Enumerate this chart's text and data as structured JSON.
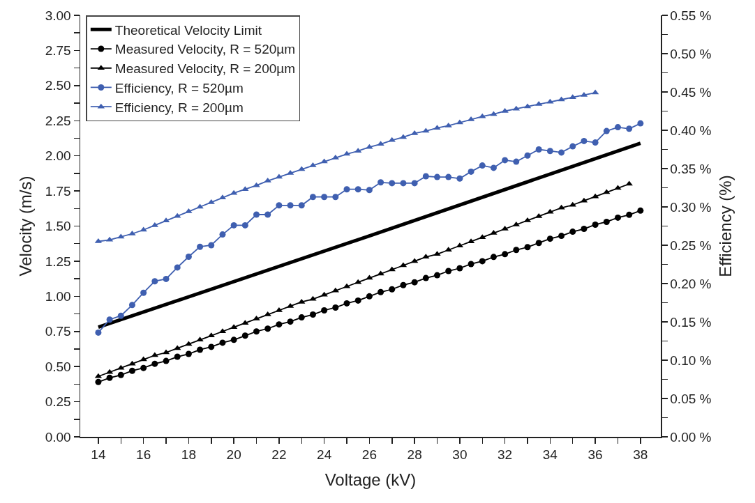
{
  "chart_data": {
    "type": "line",
    "xlabel": "Voltage (kV)",
    "ylabel": "Velocity (m/s)",
    "y2label": "Efficiency (%)",
    "xlim": [
      13.2,
      38.9
    ],
    "ylim": [
      0,
      3
    ],
    "y2lim": [
      0,
      0.55
    ],
    "xticks": [
      14,
      {
        "value": 15,
        "label": null
      },
      16,
      {
        "value": 17,
        "label": null
      },
      18,
      {
        "value": 19,
        "label": null
      },
      20,
      {
        "value": 21,
        "label": null
      },
      22,
      {
        "value": 23,
        "label": null
      },
      24,
      {
        "value": 25,
        "label": null
      },
      26,
      {
        "value": 27,
        "label": null
      },
      28,
      {
        "value": 29,
        "label": null
      },
      30,
      {
        "value": 31,
        "label": null
      },
      32,
      {
        "value": 33,
        "label": null
      },
      34,
      {
        "value": 35,
        "label": null
      },
      36,
      {
        "value": 37,
        "label": null
      },
      38
    ],
    "yticks": [
      {
        "value": 0,
        "label": "0.00"
      },
      {
        "value": 0.125,
        "label": null
      },
      {
        "value": 0.25,
        "label": "0.25"
      },
      {
        "value": 0.375,
        "label": null
      },
      {
        "value": 0.5,
        "label": "0.50"
      },
      {
        "value": 0.625,
        "label": null
      },
      {
        "value": 0.75,
        "label": "0.75"
      },
      {
        "value": 0.875,
        "label": null
      },
      {
        "value": 1,
        "label": "1.00"
      },
      {
        "value": 1.125,
        "label": null
      },
      {
        "value": 1.25,
        "label": "1.25"
      },
      {
        "value": 1.375,
        "label": null
      },
      {
        "value": 1.5,
        "label": "1.50"
      },
      {
        "value": 1.625,
        "label": null
      },
      {
        "value": 1.75,
        "label": "1.75"
      },
      {
        "value": 1.875,
        "label": null
      },
      {
        "value": 2,
        "label": "2.00"
      },
      {
        "value": 2.125,
        "label": null
      },
      {
        "value": 2.25,
        "label": "2.25"
      },
      {
        "value": 2.375,
        "label": null
      },
      {
        "value": 2.5,
        "label": "2.50"
      },
      {
        "value": 2.625,
        "label": null
      },
      {
        "value": 2.75,
        "label": "2.75"
      },
      {
        "value": 2.875,
        "label": null
      },
      {
        "value": 3,
        "label": "3.00"
      }
    ],
    "y2ticks": [
      {
        "value": 0,
        "label": "0.00 %"
      },
      {
        "value": 0.025,
        "label": null
      },
      {
        "value": 0.05,
        "label": "0.05 %"
      },
      {
        "value": 0.075,
        "label": null
      },
      {
        "value": 0.1,
        "label": "0.10 %"
      },
      {
        "value": 0.125,
        "label": null
      },
      {
        "value": 0.15,
        "label": "0.15 %"
      },
      {
        "value": 0.175,
        "label": null
      },
      {
        "value": 0.2,
        "label": "0.20 %"
      },
      {
        "value": 0.225,
        "label": null
      },
      {
        "value": 0.25,
        "label": "0.25 %"
      },
      {
        "value": 0.275,
        "label": null
      },
      {
        "value": 0.3,
        "label": "0.30 %"
      },
      {
        "value": 0.325,
        "label": null
      },
      {
        "value": 0.35,
        "label": "0.35 %"
      },
      {
        "value": 0.375,
        "label": null
      },
      {
        "value": 0.4,
        "label": "0.40 %"
      },
      {
        "value": 0.425,
        "label": null
      },
      {
        "value": 0.45,
        "label": "0.45 %"
      },
      {
        "value": 0.475,
        "label": null
      },
      {
        "value": 0.5,
        "label": "0.50 %"
      },
      {
        "value": 0.525,
        "label": null
      },
      {
        "value": 0.55,
        "label": "0.55 %"
      }
    ],
    "grid": false,
    "legend": "top left",
    "series": [
      {
        "name": "Theoretical Velocity Limit",
        "color": "#000000",
        "marker": "none",
        "x": [
          14,
          26,
          38
        ],
        "values": [
          0.78,
          1.43,
          2.09
        ]
      },
      {
        "name": "Measured Velocity, R = 520µm",
        "color": "#000000",
        "marker": "circle",
        "x": [
          14,
          14.5,
          15,
          15.5,
          16,
          16.5,
          17,
          17.5,
          18,
          18.5,
          19,
          19.5,
          20,
          20.5,
          21,
          21.5,
          22,
          22.5,
          23,
          23.5,
          24,
          24.5,
          25,
          25.5,
          26,
          26.5,
          27,
          27.5,
          28,
          28.5,
          29,
          29.5,
          30,
          30.5,
          31,
          31.5,
          32,
          32.5,
          33,
          33.5,
          34,
          34.5,
          35,
          35.5,
          36,
          36.5,
          37,
          37.5,
          38
        ],
        "values": [
          0.39,
          0.42,
          0.44,
          0.47,
          0.49,
          0.52,
          0.54,
          0.57,
          0.59,
          0.62,
          0.64,
          0.67,
          0.69,
          0.72,
          0.75,
          0.77,
          0.8,
          0.82,
          0.85,
          0.87,
          0.9,
          0.92,
          0.95,
          0.97,
          1.0,
          1.03,
          1.05,
          1.08,
          1.1,
          1.13,
          1.15,
          1.18,
          1.2,
          1.23,
          1.25,
          1.28,
          1.3,
          1.33,
          1.35,
          1.38,
          1.41,
          1.43,
          1.46,
          1.48,
          1.51,
          1.53,
          1.56,
          1.58,
          1.61
        ]
      },
      {
        "name": "Measured Velocity, R = 200µm",
        "color": "#000000",
        "marker": "triangle",
        "x": [
          14,
          14.5,
          15,
          15.5,
          16,
          16.5,
          17,
          17.5,
          18,
          18.5,
          19,
          19.5,
          20,
          20.5,
          21,
          21.5,
          22,
          22.5,
          23,
          23.5,
          24,
          24.5,
          25,
          25.5,
          26,
          26.5,
          27,
          27.5,
          28,
          28.5,
          29,
          29.5,
          30,
          30.5,
          31,
          31.5,
          32,
          32.5,
          33,
          33.5,
          34,
          34.5,
          35,
          35.5,
          36,
          36.5,
          37,
          37.5
        ],
        "values": [
          0.43,
          0.46,
          0.49,
          0.52,
          0.55,
          0.58,
          0.6,
          0.63,
          0.66,
          0.69,
          0.72,
          0.75,
          0.78,
          0.81,
          0.84,
          0.87,
          0.9,
          0.93,
          0.96,
          0.98,
          1.01,
          1.04,
          1.07,
          1.1,
          1.13,
          1.16,
          1.19,
          1.22,
          1.25,
          1.28,
          1.3,
          1.33,
          1.36,
          1.39,
          1.42,
          1.45,
          1.48,
          1.51,
          1.54,
          1.57,
          1.6,
          1.63,
          1.65,
          1.68,
          1.71,
          1.74,
          1.77,
          1.8
        ]
      },
      {
        "name": "Efficiency, R = 520µm",
        "color": "#3f5fb0",
        "marker": "circle",
        "axis": "y2",
        "x": [
          14,
          14.5,
          15,
          15.5,
          16,
          16.5,
          17,
          17.5,
          18,
          18.5,
          19,
          19.5,
          20,
          20.5,
          21,
          21.5,
          22,
          22.5,
          23,
          23.5,
          24,
          24.5,
          25,
          25.5,
          26,
          26.5,
          27,
          27.5,
          28,
          28.5,
          29,
          29.5,
          30,
          30.5,
          31,
          31.5,
          32,
          32.5,
          33,
          33.5,
          34,
          34.5,
          35,
          35.5,
          36,
          36.5,
          37,
          37.5,
          38
        ],
        "values": [
          0.136,
          0.153,
          0.158,
          0.172,
          0.188,
          0.203,
          0.206,
          0.221,
          0.235,
          0.248,
          0.25,
          0.264,
          0.276,
          0.276,
          0.29,
          0.29,
          0.302,
          0.302,
          0.302,
          0.313,
          0.313,
          0.313,
          0.323,
          0.323,
          0.322,
          0.332,
          0.331,
          0.331,
          0.331,
          0.34,
          0.339,
          0.339,
          0.337,
          0.346,
          0.354,
          0.351,
          0.361,
          0.359,
          0.367,
          0.375,
          0.373,
          0.371,
          0.379,
          0.386,
          0.384,
          0.399,
          0.404,
          0.402,
          0.409
        ]
      },
      {
        "name": "Efficiency, R = 200µm",
        "color": "#3f5fb0",
        "marker": "triangle",
        "axis": "y2",
        "x": [
          14,
          14.5,
          15,
          15.5,
          16,
          16.5,
          17,
          17.5,
          18,
          18.5,
          19,
          19.5,
          20,
          20.5,
          21,
          21.5,
          22,
          22.5,
          23,
          23.5,
          24,
          24.5,
          25,
          25.5,
          26,
          26.5,
          27,
          27.5,
          28,
          28.5,
          29,
          29.5,
          30,
          30.5,
          31,
          31.5,
          32,
          32.5,
          33,
          33.5,
          34,
          34.5,
          35,
          35.5,
          36
        ],
        "values": [
          0.255,
          0.257,
          0.261,
          0.265,
          0.27,
          0.276,
          0.282,
          0.288,
          0.294,
          0.3,
          0.306,
          0.312,
          0.318,
          0.323,
          0.328,
          0.334,
          0.339,
          0.344,
          0.349,
          0.354,
          0.359,
          0.364,
          0.369,
          0.373,
          0.378,
          0.382,
          0.387,
          0.391,
          0.396,
          0.399,
          0.403,
          0.406,
          0.41,
          0.414,
          0.418,
          0.421,
          0.425,
          0.428,
          0.431,
          0.434,
          0.437,
          0.44,
          0.443,
          0.446,
          0.449
        ]
      }
    ]
  }
}
